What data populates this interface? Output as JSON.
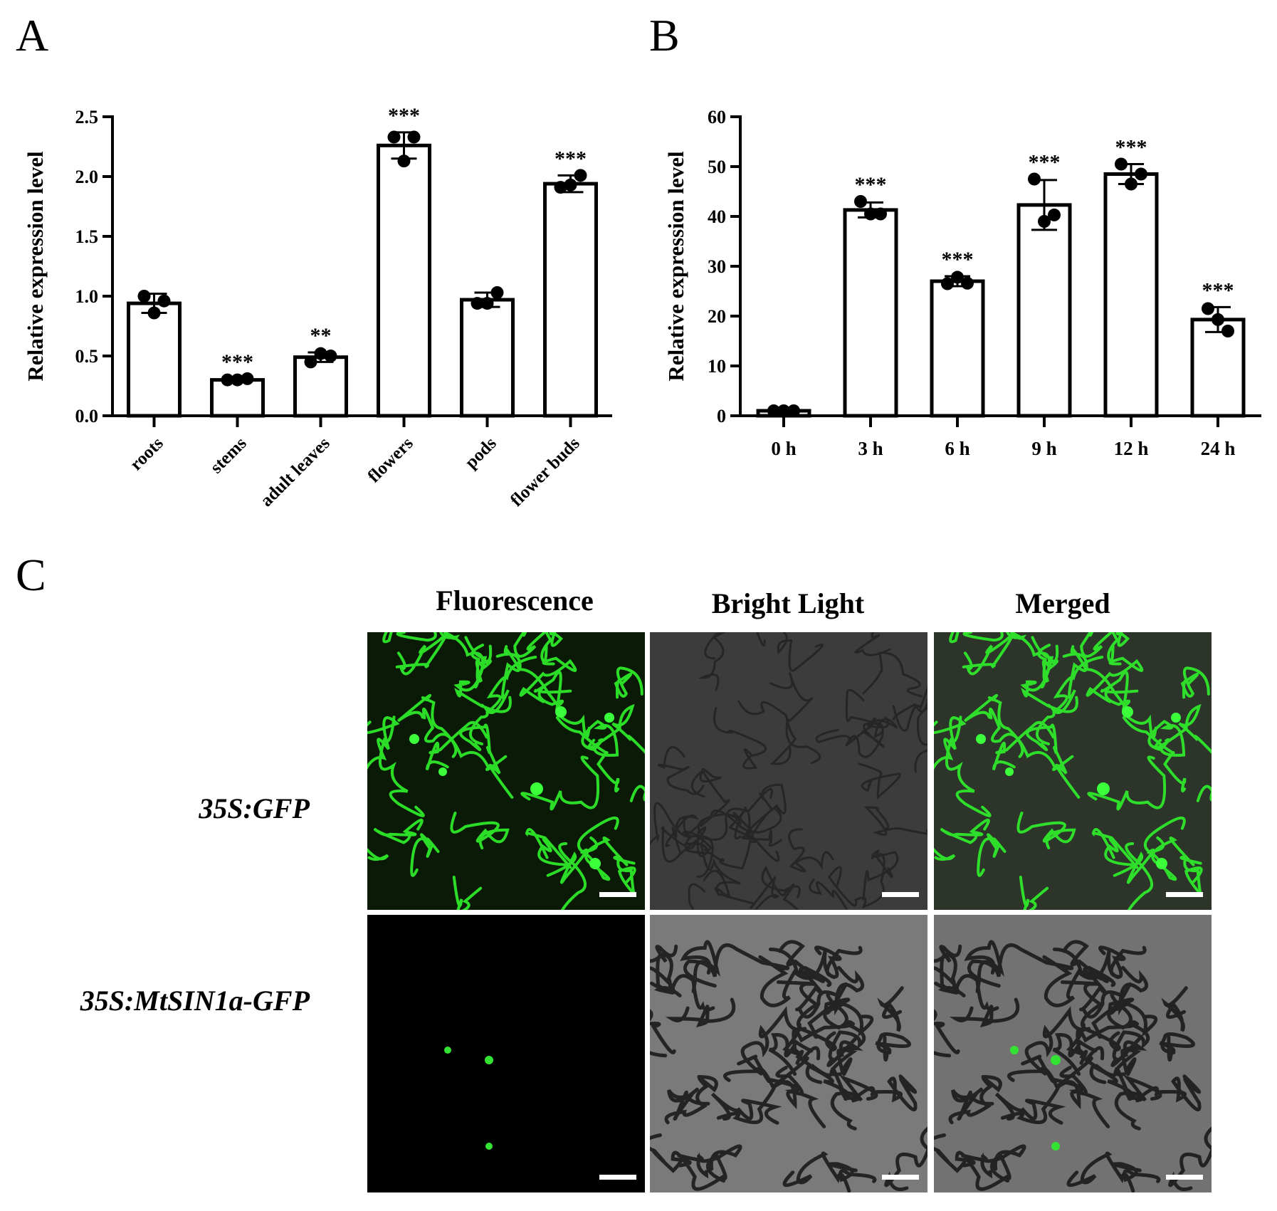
{
  "panels": {
    "A": {
      "letter": "A"
    },
    "B": {
      "letter": "B"
    },
    "C": {
      "letter": "C",
      "columns": [
        "Fluorescence",
        "Bright Light",
        "Merged"
      ],
      "rows": [
        "35S:GFP",
        "35S:MtSIN1a-GFP"
      ]
    }
  },
  "chart_data": [
    {
      "type": "bar",
      "panel": "A",
      "ylabel": "Relative expression level",
      "categories": [
        "roots",
        "stems",
        "adult leaves",
        "flowers",
        "pods",
        "flower buds"
      ],
      "values": [
        0.94,
        0.3,
        0.49,
        2.26,
        0.97,
        1.94
      ],
      "errors": [
        0.08,
        0.01,
        0.04,
        0.11,
        0.06,
        0.07
      ],
      "points": [
        [
          1.0,
          0.86,
          0.96
        ],
        [
          0.3,
          0.3,
          0.31
        ],
        [
          0.45,
          0.52,
          0.5
        ],
        [
          2.33,
          2.13,
          2.33
        ],
        [
          0.94,
          0.94,
          1.03
        ],
        [
          1.91,
          1.93,
          2.01
        ]
      ],
      "significance": [
        "",
        "***",
        "**",
        "***",
        "",
        "***"
      ],
      "ylim": [
        0,
        2.5
      ],
      "yticks": [
        "0.0",
        "0.5",
        "1.0",
        "1.5",
        "2.0",
        "2.5"
      ],
      "bar_color": "#ffffff",
      "edge_color": "#000000"
    },
    {
      "type": "bar",
      "panel": "B",
      "ylabel": "Relative expression level",
      "categories": [
        "0 h",
        "3 h",
        "6 h",
        "9 h",
        "12 h",
        "24 h"
      ],
      "values": [
        1.0,
        41.3,
        27.0,
        42.3,
        48.5,
        19.3
      ],
      "errors": [
        0.2,
        1.5,
        1.0,
        5.0,
        2.0,
        2.5
      ],
      "points": [
        [
          1.0,
          1.0,
          1.0
        ],
        [
          43.0,
          40.5,
          40.5
        ],
        [
          26.5,
          27.8,
          26.6
        ],
        [
          47.5,
          39.0,
          40.3
        ],
        [
          50.5,
          46.5,
          48.5
        ],
        [
          21.5,
          19.3,
          17.0
        ]
      ],
      "significance": [
        "",
        "***",
        "***",
        "***",
        "***",
        "***"
      ],
      "ylim": [
        0,
        60
      ],
      "yticks": [
        "0",
        "10",
        "20",
        "30",
        "40",
        "50",
        "60"
      ],
      "bar_color": "#ffffff",
      "edge_color": "#000000"
    }
  ]
}
